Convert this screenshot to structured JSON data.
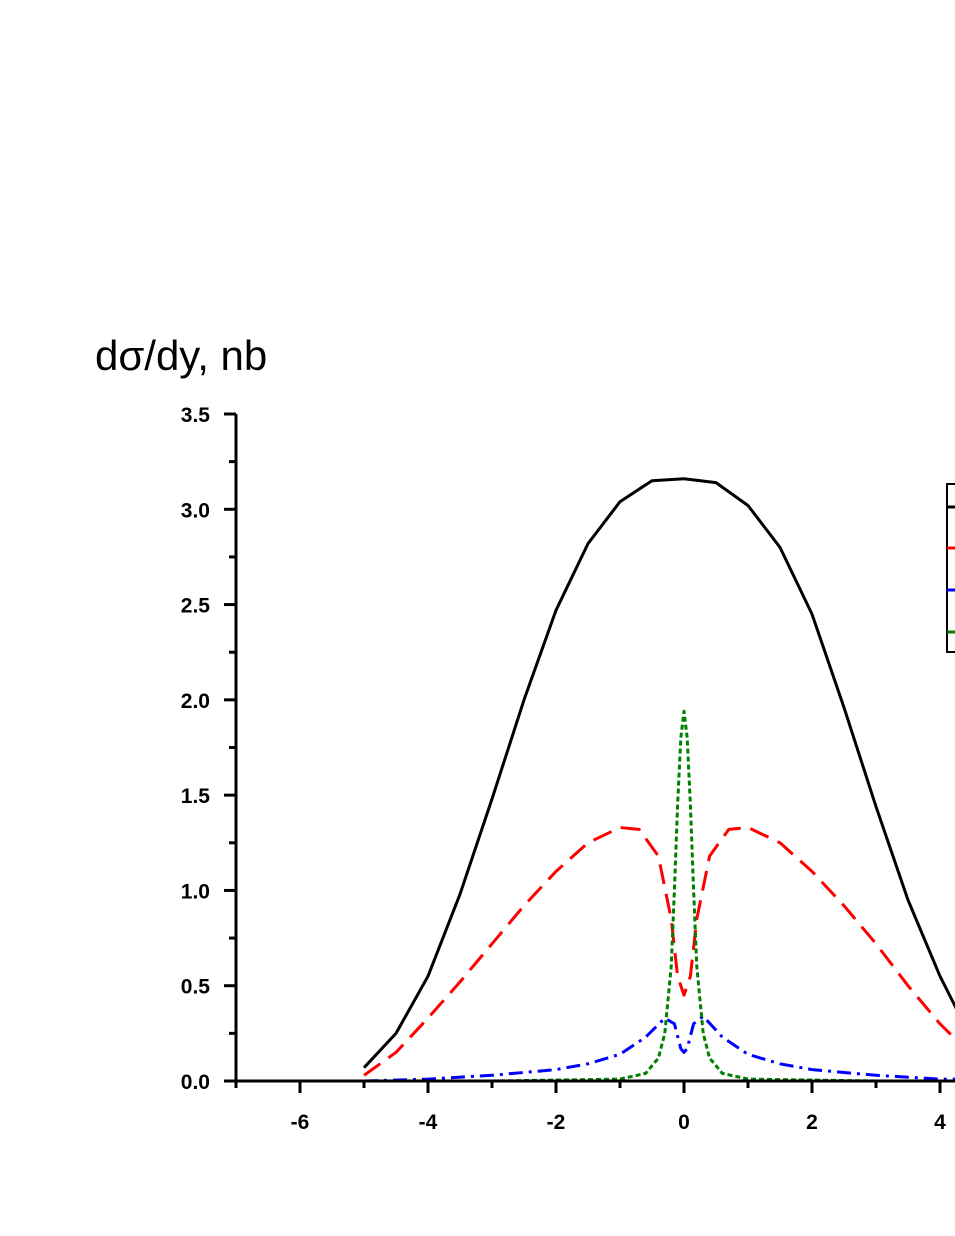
{
  "chart_data": {
    "type": "line",
    "title": "",
    "ylabel": "dσ/dy, nb",
    "xlabel": "",
    "xlim": [
      -7,
      4.3
    ],
    "ylim": [
      0,
      3.5
    ],
    "x_ticks": [
      -6,
      -4,
      -2,
      0,
      2,
      4
    ],
    "x_tick_labels": [
      "-6",
      "-4",
      "-2",
      "0",
      "2",
      "4"
    ],
    "y_ticks": [
      0,
      0.5,
      1.0,
      1.5,
      2.0,
      2.5,
      3.0,
      3.5
    ],
    "y_tick_labels": [
      "0.0",
      "0.5",
      "1.0",
      "1.5",
      "2.0",
      "2.5",
      "3.0",
      "3.5"
    ],
    "grid": false,
    "legend_position": "top-right",
    "series": [
      {
        "color": "#000000",
        "style": "solid",
        "x": [
          -5.0,
          -4.5,
          -4.0,
          -3.5,
          -3.0,
          -2.5,
          -2.0,
          -1.5,
          -1.0,
          -0.5,
          0.0,
          0.5,
          1.0,
          1.5,
          2.0,
          2.5,
          3.0,
          3.5,
          4.0,
          4.3
        ],
        "y": [
          0.07,
          0.25,
          0.55,
          0.98,
          1.48,
          2.0,
          2.47,
          2.82,
          3.04,
          3.15,
          3.16,
          3.14,
          3.02,
          2.8,
          2.45,
          1.96,
          1.44,
          0.95,
          0.55,
          0.35
        ]
      },
      {
        "color": "#ff0000",
        "style": "dashed",
        "x": [
          -5.0,
          -4.5,
          -4.0,
          -3.5,
          -3.0,
          -2.5,
          -2.0,
          -1.5,
          -1.0,
          -0.7,
          -0.4,
          -0.2,
          -0.1,
          0.0,
          0.1,
          0.2,
          0.4,
          0.7,
          1.0,
          1.5,
          2.0,
          2.5,
          3.0,
          3.5,
          4.0,
          4.3
        ],
        "y": [
          0.03,
          0.15,
          0.33,
          0.52,
          0.72,
          0.92,
          1.1,
          1.25,
          1.33,
          1.32,
          1.18,
          0.85,
          0.55,
          0.45,
          0.55,
          0.85,
          1.18,
          1.32,
          1.33,
          1.25,
          1.1,
          0.92,
          0.72,
          0.5,
          0.3,
          0.2
        ]
      },
      {
        "color": "#0000ff",
        "style": "dashdot",
        "x": [
          -5.0,
          -4.0,
          -3.0,
          -2.0,
          -1.5,
          -1.0,
          -0.6,
          -0.3,
          -0.15,
          -0.05,
          0.0,
          0.05,
          0.15,
          0.3,
          0.6,
          1.0,
          1.5,
          2.0,
          3.0,
          4.0,
          4.3
        ],
        "y": [
          0.0,
          0.01,
          0.03,
          0.06,
          0.09,
          0.14,
          0.23,
          0.33,
          0.3,
          0.17,
          0.15,
          0.17,
          0.3,
          0.34,
          0.23,
          0.14,
          0.09,
          0.06,
          0.03,
          0.01,
          0.01
        ]
      },
      {
        "color": "#008000",
        "style": "dotted",
        "x": [
          -5.0,
          -3.0,
          -1.0,
          -0.6,
          -0.4,
          -0.3,
          -0.2,
          -0.15,
          -0.1,
          -0.05,
          0.0,
          0.05,
          0.1,
          0.15,
          0.2,
          0.3,
          0.4,
          0.6,
          1.0,
          3.0,
          4.3
        ],
        "y": [
          0.0,
          0.0,
          0.01,
          0.04,
          0.12,
          0.25,
          0.6,
          1.0,
          1.45,
          1.8,
          1.94,
          1.8,
          1.45,
          1.0,
          0.6,
          0.25,
          0.12,
          0.04,
          0.01,
          0.0,
          0.0
        ]
      }
    ]
  }
}
